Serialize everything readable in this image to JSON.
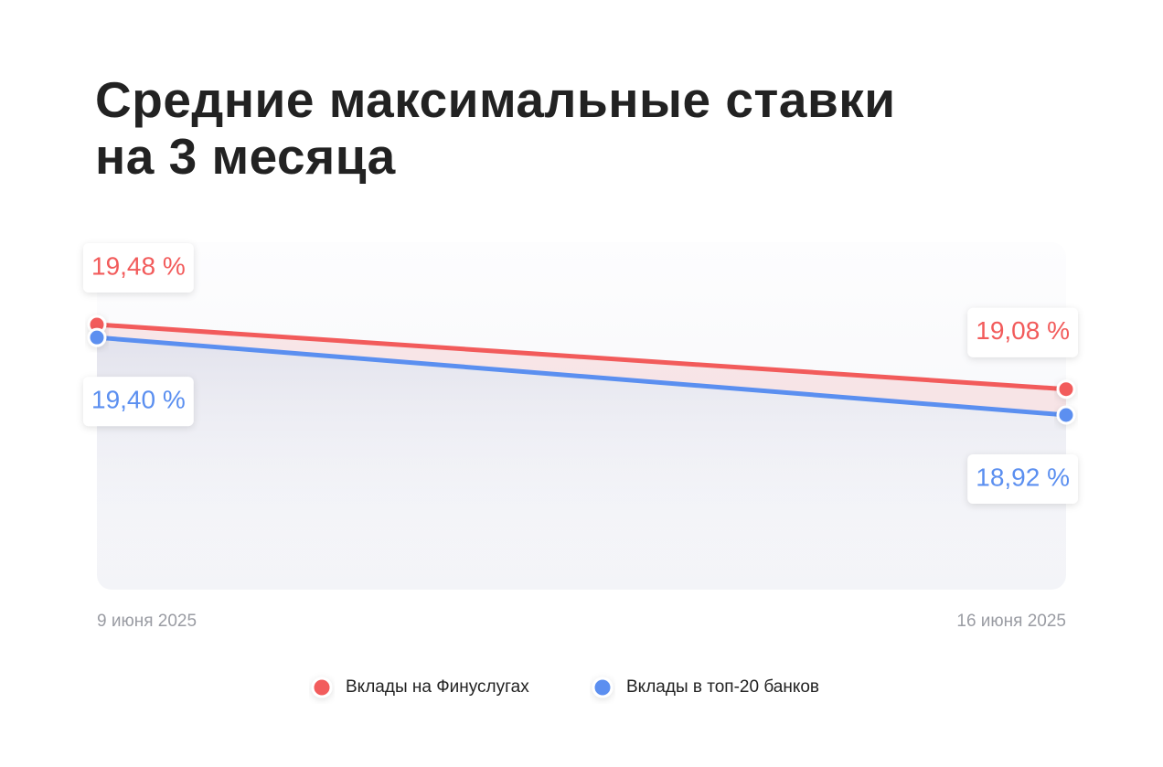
{
  "chart_data": {
    "type": "line",
    "title": "Средние максимальные ставки\nна 3 месяца",
    "categories": [
      "9 июня 2025",
      "16 июня 2025"
    ],
    "series": [
      {
        "name": "Вклады на Финуслугах",
        "color": "#f25b5b",
        "values": [
          19.48,
          19.08
        ],
        "value_labels": [
          "19,48 %",
          "19,08 %"
        ]
      },
      {
        "name": "Вклады в топ-20 банков",
        "color": "#5b8ff0",
        "values": [
          19.4,
          18.92
        ],
        "value_labels": [
          "19,40 %",
          "18,92 %"
        ]
      }
    ]
  }
}
